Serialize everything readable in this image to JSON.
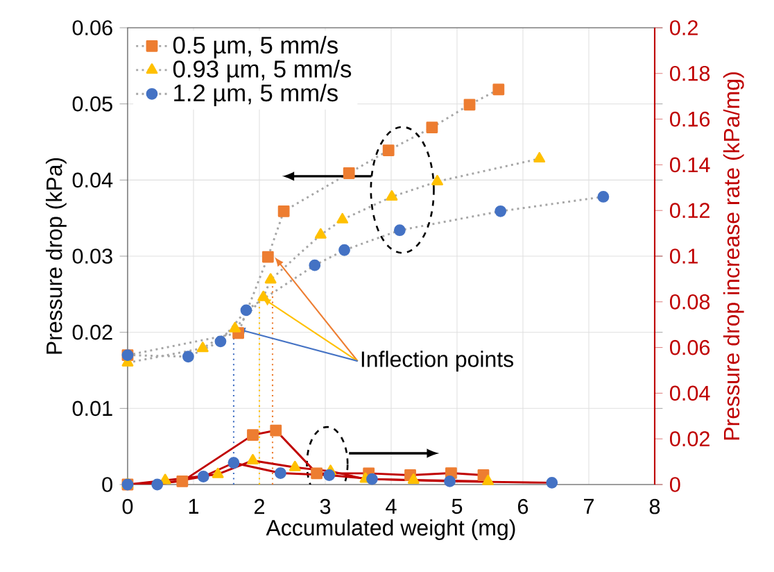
{
  "chart_data": {
    "type": "line",
    "xlabel": "Accumulated weight (mg)",
    "ylabel": "Pressure drop (kPa)",
    "y2label": "Pressure drop increase rate (kPa/mg)",
    "xlim": [
      0,
      8
    ],
    "xticks": [
      0,
      1,
      2,
      3,
      4,
      5,
      6,
      7,
      8
    ],
    "ylim": [
      0,
      0.06
    ],
    "yticks": [
      0,
      0.01,
      0.02,
      0.03,
      0.04,
      0.05,
      0.06
    ],
    "y2lim": [
      0,
      0.2
    ],
    "y2ticks": [
      0,
      0.02,
      0.04,
      0.06,
      0.08,
      0.1,
      0.12,
      0.14,
      0.16,
      0.18,
      0.2
    ],
    "grid": true,
    "legend": "top left",
    "ref_lines": [
      {
        "axis": "x",
        "value": 2.2,
        "color": "#ed7d31",
        "line_style": "dotted"
      },
      {
        "axis": "x",
        "value": 2.0,
        "color": "#ffc000",
        "line_style": "dotted"
      },
      {
        "axis": "x",
        "value": 1.61,
        "color": "#4472c4",
        "line_style": "dotted"
      }
    ],
    "annotations": [
      {
        "text": "Inflection points",
        "x": 2.06,
        "y": 0.0246
      }
    ],
    "series": [
      {
        "name": "0.5 µm, 5 mm/s",
        "color": "#ed7d31",
        "marker": "square",
        "line_style": "dotted",
        "axis": "y",
        "x": [
          0,
          1.68,
          2.13,
          2.37,
          3.36,
          3.96,
          4.62,
          5.19,
          5.63
        ],
        "values": [
          0.017,
          0.0199,
          0.0299,
          0.0359,
          0.0409,
          0.0439,
          0.0469,
          0.0499,
          0.0519
        ]
      },
      {
        "name": "0.93 µm, 5 mm/s",
        "color": "#ffc000",
        "marker": "triangle",
        "line_style": "dotted",
        "axis": "y",
        "x": [
          0,
          1.14,
          1.63,
          2.06,
          2.17,
          2.93,
          3.26,
          4.01,
          4.7,
          6.25
        ],
        "values": [
          0.016,
          0.0179,
          0.0205,
          0.0246,
          0.0269,
          0.0328,
          0.0348,
          0.0378,
          0.0398,
          0.0428
        ]
      },
      {
        "name": "1.2 µm, 5 mm/s",
        "color": "#4472c4",
        "marker": "circle",
        "line_style": "dotted",
        "axis": "y",
        "x": [
          0,
          0.92,
          1.41,
          1.8,
          2.84,
          3.29,
          4.13,
          5.66,
          7.22
        ],
        "values": [
          0.017,
          0.0168,
          0.0188,
          0.0229,
          0.0288,
          0.0308,
          0.0334,
          0.0359,
          0.0378
        ]
      },
      {
        "color": "#ed7d31",
        "marker": "square",
        "line_style": "solid",
        "axis": "y2",
        "x": [
          0,
          0.83,
          1.9,
          2.25,
          2.87,
          3.66,
          4.29,
          4.91,
          5.4
        ],
        "values": [
          0,
          0.0014,
          0.0217,
          0.0237,
          0.0049,
          0.0049,
          0.0041,
          0.005,
          0.0041
        ]
      },
      {
        "color": "#ffc000",
        "marker": "triangle",
        "line_style": "solid",
        "axis": "y2",
        "x": [
          0,
          0.57,
          1.37,
          1.9,
          2.54,
          3.08,
          3.61,
          4.34,
          5.47
        ],
        "values": [
          0,
          0.0018,
          0.0045,
          0.0105,
          0.0075,
          0.0058,
          0.0024,
          0.002,
          0.0014
        ]
      },
      {
        "color": "#4472c4",
        "marker": "circle",
        "line_style": "solid",
        "axis": "y2",
        "x": [
          0,
          0.45,
          1.15,
          1.61,
          2.32,
          3.06,
          3.71,
          4.89,
          6.44
        ],
        "values": [
          0,
          0,
          0.0035,
          0.0095,
          0.005,
          0.0041,
          0.0024,
          0.0014,
          0.0008
        ]
      }
    ]
  }
}
